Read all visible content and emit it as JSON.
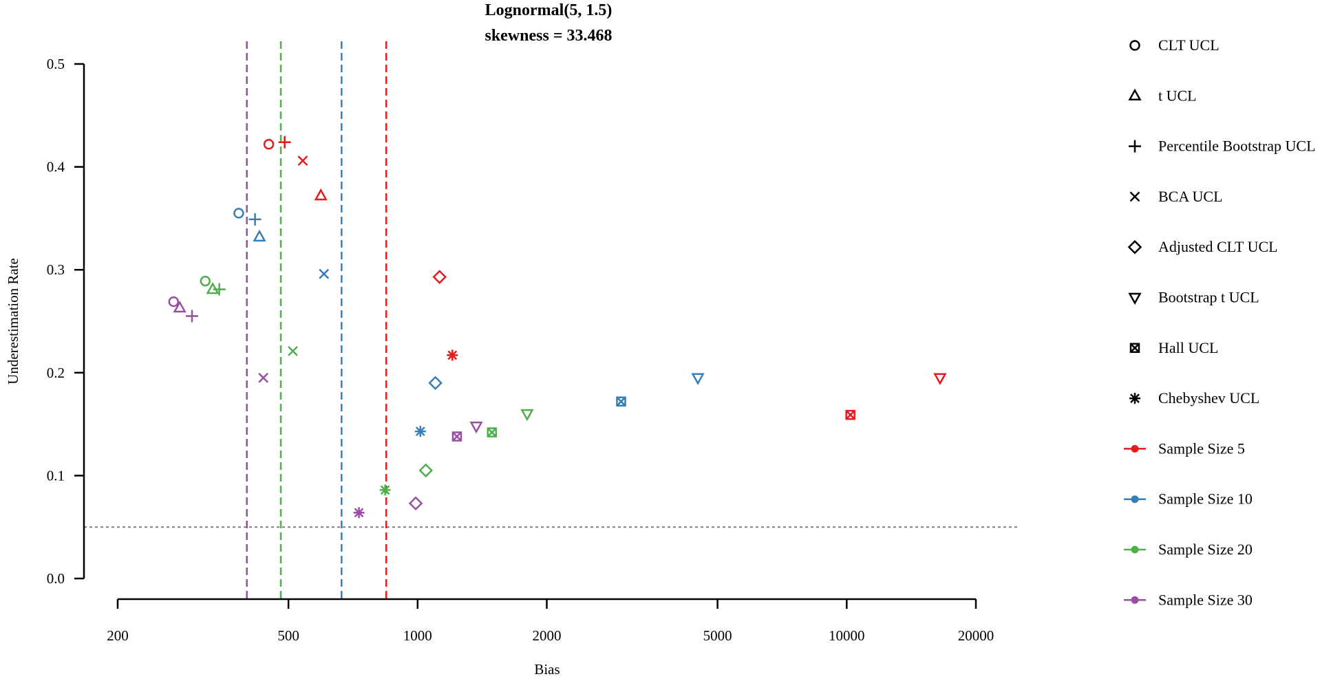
{
  "chart_data": {
    "type": "scatter",
    "title": "Lognormal(5, 1.5)",
    "subtitle": "skewness = 33.468",
    "xlabel": "Bias",
    "ylabel": "Underestimation Rate",
    "x_scale": "log",
    "xlim": [
      200,
      20000
    ],
    "ylim": [
      0,
      0.5
    ],
    "x_ticks": [
      {
        "value": 200,
        "label": "200"
      },
      {
        "value": 500,
        "label": "500"
      },
      {
        "value": 1000,
        "label": "1000"
      },
      {
        "value": 2000,
        "label": "2000"
      },
      {
        "value": 5000,
        "label": "5000"
      },
      {
        "value": 10000,
        "label": "10000"
      },
      {
        "value": 20000,
        "label": "20000"
      }
    ],
    "y_ticks": [
      {
        "value": 0.0,
        "label": "0.0"
      },
      {
        "value": 0.1,
        "label": "0.1"
      },
      {
        "value": 0.2,
        "label": "0.2"
      },
      {
        "value": 0.3,
        "label": "0.3"
      },
      {
        "value": 0.4,
        "label": "0.4"
      },
      {
        "value": 0.5,
        "label": "0.5"
      }
    ],
    "grid": false,
    "legend_position": "right",
    "reference_lines": [
      {
        "orientation": "horizontal",
        "y": 0.05,
        "color": "#808080",
        "style": "dotted"
      },
      {
        "orientation": "vertical",
        "x": 400,
        "color": "#984EA3",
        "style": "dashed"
      },
      {
        "orientation": "vertical",
        "x": 480,
        "color": "#4DAF4A",
        "style": "dashed"
      },
      {
        "orientation": "vertical",
        "x": 665,
        "color": "#377EB8",
        "style": "dashed"
      },
      {
        "orientation": "vertical",
        "x": 845,
        "color": "#E41A1C",
        "style": "dashed"
      }
    ],
    "methods": [
      {
        "name": "CLT UCL",
        "marker": "circle"
      },
      {
        "name": "t UCL",
        "marker": "triangle-up"
      },
      {
        "name": "Percentile Bootstrap UCL",
        "marker": "plus"
      },
      {
        "name": "BCA UCL",
        "marker": "x"
      },
      {
        "name": "Adjusted CLT UCL",
        "marker": "diamond"
      },
      {
        "name": "Bootstrap t UCL",
        "marker": "triangle-down"
      },
      {
        "name": "Hall UCL",
        "marker": "boxed-x"
      },
      {
        "name": "Chebyshev UCL",
        "marker": "asterisk"
      }
    ],
    "series": [
      {
        "name": "Sample Size 5",
        "color": "#E41A1C",
        "points": [
          {
            "method": "CLT UCL",
            "x": 450,
            "y": 0.422
          },
          {
            "method": "t UCL",
            "x": 595,
            "y": 0.372
          },
          {
            "method": "Percentile Bootstrap UCL",
            "x": 490,
            "y": 0.424
          },
          {
            "method": "BCA UCL",
            "x": 540,
            "y": 0.406
          },
          {
            "method": "Adjusted CLT UCL",
            "x": 1125,
            "y": 0.293
          },
          {
            "method": "Bootstrap t UCL",
            "x": 16500,
            "y": 0.195
          },
          {
            "method": "Hall UCL",
            "x": 10200,
            "y": 0.159
          },
          {
            "method": "Chebyshev UCL",
            "x": 1205,
            "y": 0.217
          }
        ]
      },
      {
        "name": "Sample Size 10",
        "color": "#377EB8",
        "points": [
          {
            "method": "CLT UCL",
            "x": 383,
            "y": 0.355
          },
          {
            "method": "t UCL",
            "x": 428,
            "y": 0.332
          },
          {
            "method": "Percentile Bootstrap UCL",
            "x": 418,
            "y": 0.349
          },
          {
            "method": "BCA UCL",
            "x": 605,
            "y": 0.296
          },
          {
            "method": "Adjusted CLT UCL",
            "x": 1100,
            "y": 0.19
          },
          {
            "method": "Bootstrap t UCL",
            "x": 4500,
            "y": 0.195
          },
          {
            "method": "Hall UCL",
            "x": 2980,
            "y": 0.172
          },
          {
            "method": "Chebyshev UCL",
            "x": 1015,
            "y": 0.143
          }
        ]
      },
      {
        "name": "Sample Size 20",
        "color": "#4DAF4A",
        "points": [
          {
            "method": "CLT UCL",
            "x": 320,
            "y": 0.289
          },
          {
            "method": "t UCL",
            "x": 333,
            "y": 0.281
          },
          {
            "method": "Percentile Bootstrap UCL",
            "x": 345,
            "y": 0.281
          },
          {
            "method": "BCA UCL",
            "x": 512,
            "y": 0.221
          },
          {
            "method": "Adjusted CLT UCL",
            "x": 1045,
            "y": 0.105
          },
          {
            "method": "Bootstrap t UCL",
            "x": 1800,
            "y": 0.16
          },
          {
            "method": "Hall UCL",
            "x": 1490,
            "y": 0.142
          },
          {
            "method": "Chebyshev UCL",
            "x": 840,
            "y": 0.086
          }
        ]
      },
      {
        "name": "Sample Size 30",
        "color": "#984EA3",
        "points": [
          {
            "method": "CLT UCL",
            "x": 270,
            "y": 0.269
          },
          {
            "method": "t UCL",
            "x": 279,
            "y": 0.263
          },
          {
            "method": "Percentile Bootstrap UCL",
            "x": 298,
            "y": 0.255
          },
          {
            "method": "BCA UCL",
            "x": 437,
            "y": 0.195
          },
          {
            "method": "Adjusted CLT UCL",
            "x": 990,
            "y": 0.073
          },
          {
            "method": "Bootstrap t UCL",
            "x": 1370,
            "y": 0.148
          },
          {
            "method": "Hall UCL",
            "x": 1235,
            "y": 0.138
          },
          {
            "method": "Chebyshev UCL",
            "x": 730,
            "y": 0.064
          }
        ]
      }
    ]
  }
}
